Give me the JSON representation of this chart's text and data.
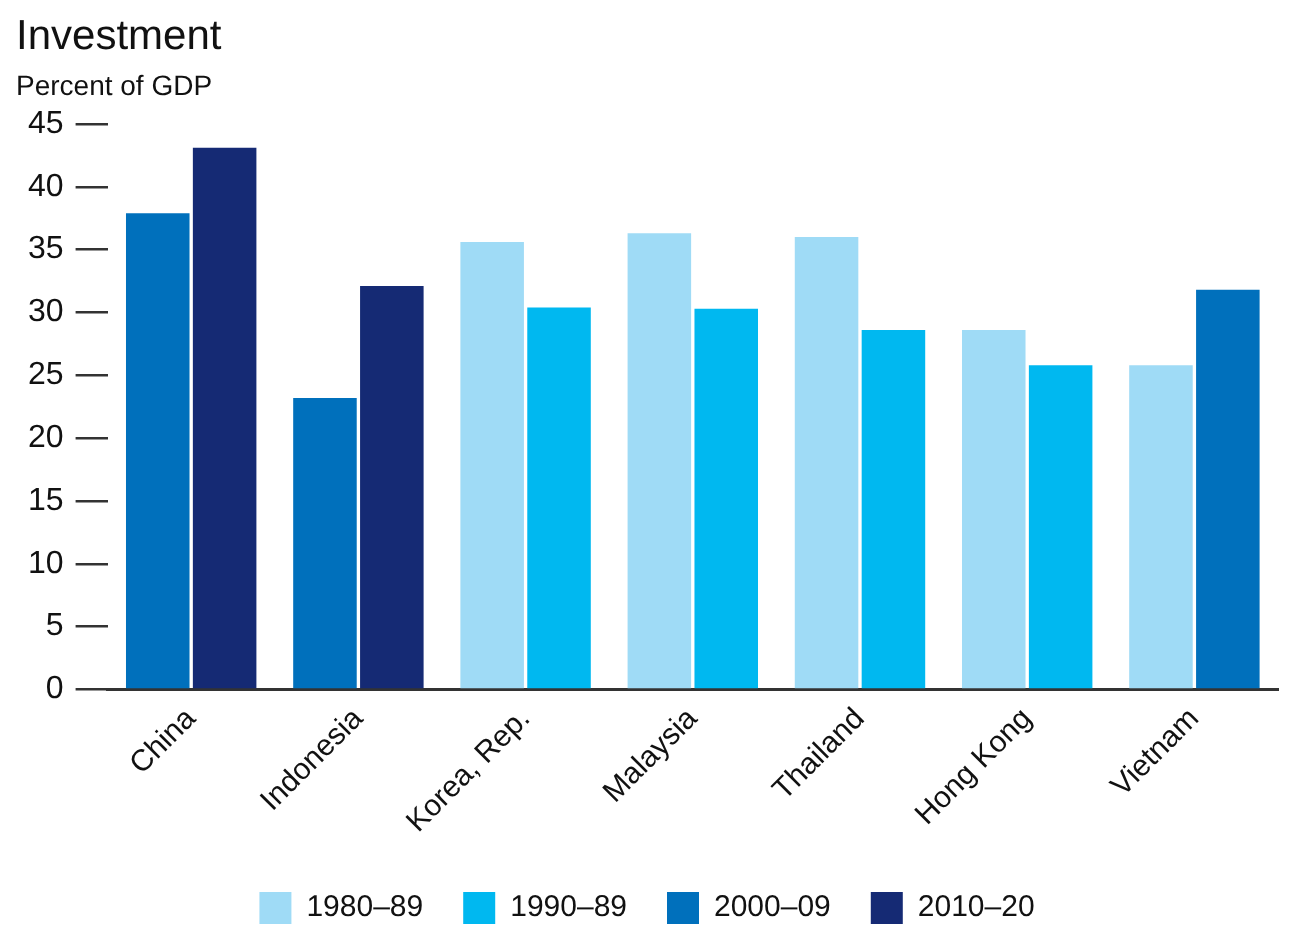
{
  "chart_data": {
    "type": "bar",
    "title": "Investment",
    "subtitle": "Percent of GDP",
    "categories": [
      "China",
      "Indonesia",
      "Korea, Rep.",
      "Malaysia",
      "Thailand",
      "Hong Kong",
      "Vietnam"
    ],
    "series": [
      {
        "name": "1980–89",
        "color": "#9fdbf6",
        "values": [
          null,
          null,
          35.6,
          36.3,
          36.0,
          28.6,
          25.8
        ]
      },
      {
        "name": "1990–89",
        "color": "#00b8f0",
        "values": [
          null,
          null,
          30.4,
          30.3,
          28.6,
          25.8,
          null
        ]
      },
      {
        "name": "2000–09",
        "color": "#0070bc",
        "values": [
          37.9,
          23.2,
          null,
          null,
          null,
          null,
          31.8
        ]
      },
      {
        "name": "2010–20",
        "color": "#152a74",
        "values": [
          43.1,
          32.1,
          null,
          null,
          null,
          null,
          null
        ]
      }
    ],
    "ylim": [
      0,
      45
    ],
    "yticks": [
      0,
      5,
      10,
      15,
      20,
      25,
      30,
      35,
      40,
      45
    ],
    "grid": false,
    "legend": "bottom"
  }
}
